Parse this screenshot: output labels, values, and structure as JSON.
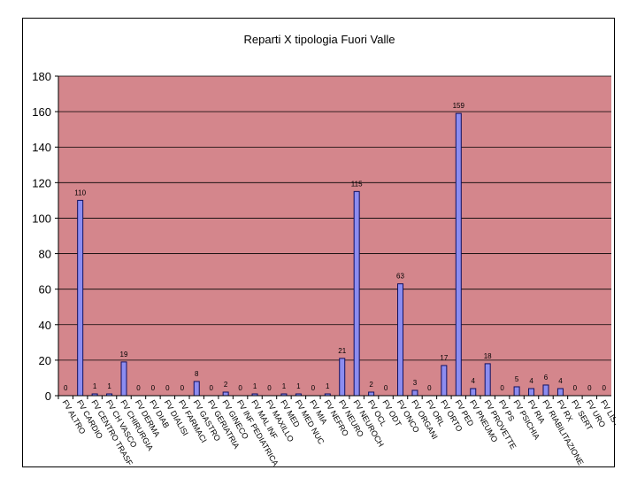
{
  "chart_data": {
    "type": "bar",
    "title": "Reparti X tipologia Fuori Valle",
    "xlabel": "",
    "ylabel": "",
    "ylim": [
      0,
      180
    ],
    "yticks": [
      0,
      20,
      40,
      60,
      80,
      100,
      120,
      140,
      160,
      180
    ],
    "grid": true,
    "legend": "none",
    "colors": {
      "plot_background": "#d4868c",
      "bar_fill": "#8c8cf0",
      "bar_stroke": "#101060",
      "gridline": "#000000"
    },
    "categories": [
      "FV ALTRO",
      "FV CARDIO",
      "FV CENTRO TRASF",
      "FV CH VASCO",
      "FV CHIRURGIA",
      "FV DERMA",
      "FV DIAB",
      "FV DIALISI",
      "FV FARMACI",
      "FV GASTRO",
      "FV GERIATRIA",
      "FV GINECO",
      "FV INF PEDIATRICA",
      "FV MAL INF",
      "FV MAXILLO",
      "FV MED",
      "FV MED NUC",
      "FV MIA",
      "FV NEFRO",
      "FV NEURO",
      "FV NEUROCH",
      "FV OCL",
      "FV ODT",
      "FV ONCO",
      "FV ORGANI",
      "FV ORL",
      "FV ORTO",
      "FV PED",
      "FV PNEUMO",
      "FV PROVETTE",
      "FV PS",
      "FV PSICHIA",
      "FV RIA",
      "FV RIABILITAZIONE",
      "FV RX",
      "FV SERT",
      "FV URO",
      "FV LISTONI"
    ],
    "values": [
      0,
      110,
      1,
      1,
      19,
      0,
      0,
      0,
      0,
      8,
      0,
      2,
      0,
      1,
      0,
      1,
      1,
      0,
      1,
      21,
      115,
      2,
      0,
      63,
      3,
      0,
      17,
      159,
      4,
      18,
      0,
      5,
      4,
      6,
      4,
      0,
      0,
      0
    ]
  }
}
